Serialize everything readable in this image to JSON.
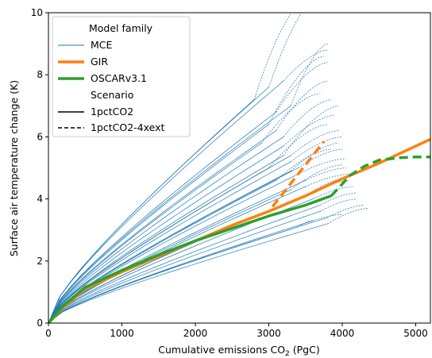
{
  "chart_data": {
    "type": "line",
    "xlabel": "Cumulative emissions CO",
    "xlabel_sub": "2",
    "xlabel_unit": "(PgC)",
    "ylabel": "Surface air temperature change (K)",
    "xlim": [
      0,
      5200
    ],
    "ylim": [
      0,
      10
    ],
    "xticks": [
      0,
      1000,
      2000,
      3000,
      4000,
      5000
    ],
    "yticks": [
      0,
      2,
      4,
      6,
      8,
      10
    ],
    "grid": false,
    "legend_position": "top-left",
    "legend": {
      "header_model": "Model family",
      "mce": "MCE",
      "gir": "GIR",
      "oscar": "OSCARv3.1",
      "header_scenario": "Scenario",
      "solid": "1pctCO2",
      "dashed": "1pctCO2-4xext"
    },
    "colors": {
      "mce": "#1f77b4",
      "gir": "#ff7f0e",
      "oscar": "#2ca02c"
    },
    "mce_ensemble": [
      {
        "emis_end": 2800,
        "temp_end": 7.2,
        "temp_ext": 10.4,
        "emis_ext": 3500
      },
      {
        "emis_end": 3000,
        "temp_end": 7.6,
        "temp_ext": 10.6,
        "emis_ext": 3700
      },
      {
        "emis_end": 3200,
        "temp_end": 7.8,
        "temp_ext": 8.8,
        "emis_ext": 3800
      },
      {
        "emis_end": 3300,
        "temp_end": 7.0,
        "temp_ext": 9.0,
        "emis_ext": 3800
      },
      {
        "emis_end": 3000,
        "temp_end": 6.4,
        "temp_ext": 8.6,
        "emis_ext": 3750
      },
      {
        "emis_end": 3100,
        "temp_end": 6.2,
        "temp_ext": 7.8,
        "emis_ext": 3800
      },
      {
        "emis_end": 3200,
        "temp_end": 6.0,
        "temp_ext": 7.2,
        "emis_ext": 3850
      },
      {
        "emis_end": 3200,
        "temp_end": 5.7,
        "temp_ext": 6.7,
        "emis_ext": 3900
      },
      {
        "emis_end": 3300,
        "temp_end": 5.4,
        "temp_ext": 6.2,
        "emis_ext": 3950
      },
      {
        "emis_end": 3300,
        "temp_end": 5.2,
        "temp_ext": 6.0,
        "emis_ext": 4000
      },
      {
        "emis_end": 3400,
        "temp_end": 5.0,
        "temp_ext": 5.6,
        "emis_ext": 4000
      },
      {
        "emis_end": 3400,
        "temp_end": 4.8,
        "temp_ext": 5.3,
        "emis_ext": 4050
      },
      {
        "emis_end": 3500,
        "temp_end": 4.6,
        "temp_ext": 5.0,
        "emis_ext": 4050
      },
      {
        "emis_end": 3500,
        "temp_end": 4.4,
        "temp_ext": 4.8,
        "emis_ext": 4100
      },
      {
        "emis_end": 3600,
        "temp_end": 4.2,
        "temp_ext": 4.6,
        "emis_ext": 4100
      },
      {
        "emis_end": 3600,
        "temp_end": 4.0,
        "temp_ext": 4.4,
        "emis_ext": 4150
      },
      {
        "emis_end": 3700,
        "temp_end": 3.8,
        "temp_ext": 4.2,
        "emis_ext": 4200
      },
      {
        "emis_end": 3700,
        "temp_end": 3.6,
        "temp_ext": 4.0,
        "emis_ext": 4200
      },
      {
        "emis_end": 3800,
        "temp_end": 3.4,
        "temp_ext": 3.8,
        "emis_ext": 4300
      },
      {
        "emis_end": 3800,
        "temp_end": 3.2,
        "temp_ext": 3.7,
        "emis_ext": 4350
      },
      {
        "emis_end": 3600,
        "temp_end": 3.3,
        "temp_ext": 3.5,
        "emis_ext": 4000
      },
      {
        "emis_end": 3400,
        "temp_end": 3.1,
        "temp_ext": 3.3,
        "emis_ext": 3600
      },
      {
        "emis_end": 3300,
        "temp_end": 4.3,
        "temp_ext": 5.1,
        "emis_ext": 4000
      },
      {
        "emis_end": 3100,
        "temp_end": 4.6,
        "temp_ext": 5.6,
        "emis_ext": 3850
      },
      {
        "emis_end": 3000,
        "temp_end": 5.0,
        "temp_ext": 6.4,
        "emis_ext": 3800
      },
      {
        "emis_end": 3200,
        "temp_end": 5.4,
        "temp_ext": 7.0,
        "emis_ext": 3950
      },
      {
        "emis_end": 2900,
        "temp_end": 5.8,
        "temp_ext": 7.4,
        "emis_ext": 3700
      },
      {
        "emis_end": 3100,
        "temp_end": 6.8,
        "temp_ext": 8.4,
        "emis_ext": 3800
      },
      {
        "emis_end": 3300,
        "temp_end": 4.9,
        "temp_ext": 5.8,
        "emis_ext": 3950
      },
      {
        "emis_end": 3500,
        "temp_end": 4.1,
        "temp_ext": 4.7,
        "emis_ext": 4100
      }
    ],
    "series": [
      {
        "name": "GIR",
        "style": "solid",
        "x": [
          0,
          200,
          500,
          1000,
          1500,
          2000,
          2500,
          3000,
          3500,
          4000,
          4500,
          5000,
          5200
        ],
        "y": [
          0,
          0.5,
          1.1,
          1.65,
          2.15,
          2.65,
          3.15,
          3.6,
          4.1,
          4.65,
          5.15,
          5.7,
          5.92
        ]
      },
      {
        "name": "GIR",
        "style": "dashed",
        "x": [
          3050,
          3200,
          3400,
          3600,
          3750
        ],
        "y": [
          3.75,
          4.2,
          4.8,
          5.4,
          5.85
        ]
      },
      {
        "name": "OSCARv3.1",
        "style": "solid",
        "x": [
          0,
          200,
          500,
          1000,
          1500,
          2000,
          2500,
          3000,
          3500,
          3850
        ],
        "y": [
          0,
          0.55,
          1.15,
          1.7,
          2.2,
          2.65,
          3.05,
          3.45,
          3.8,
          4.1
        ]
      },
      {
        "name": "OSCARv3.1",
        "style": "dashed",
        "x": [
          3850,
          3950,
          4100,
          4300,
          4500,
          4800,
          5000,
          5200
        ],
        "y": [
          4.1,
          4.35,
          4.75,
          5.05,
          5.25,
          5.33,
          5.35,
          5.35
        ]
      }
    ]
  }
}
